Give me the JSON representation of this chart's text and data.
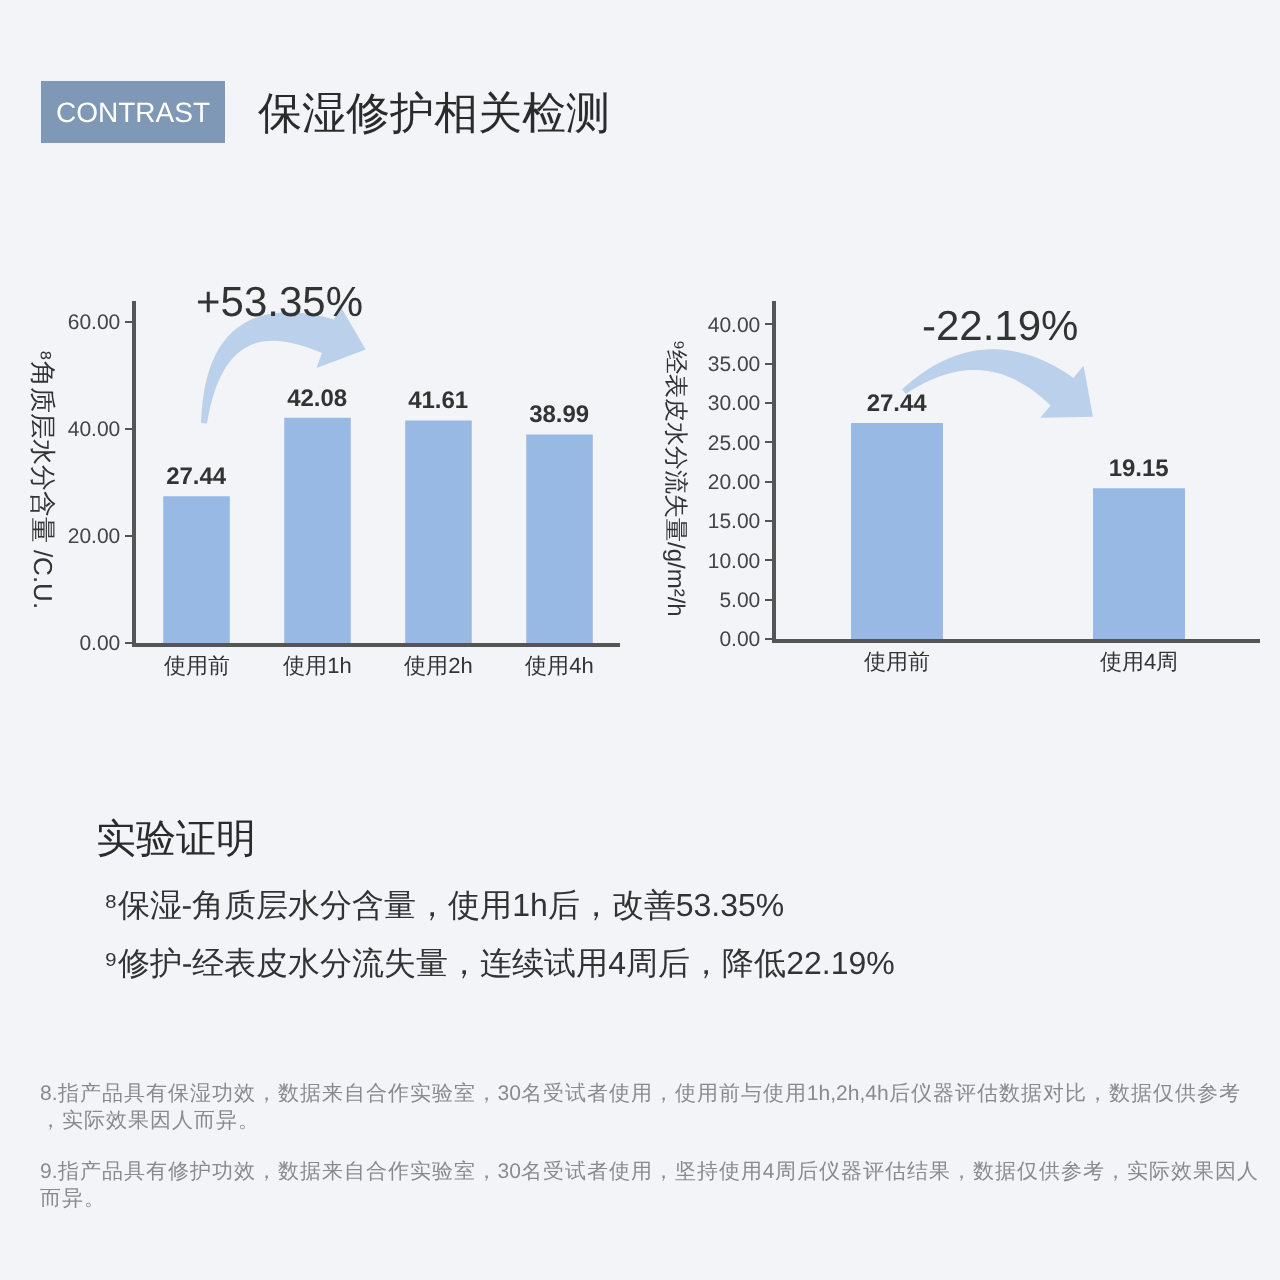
{
  "chart_data": [
    {
      "type": "other",
      "title": "保湿修护相关检测",
      "annotations": [
        "CONTRAST"
      ]
    },
    {
      "type": "bar",
      "categories": [
        "使用前",
        "使用1h",
        "使用2h",
        "使用4h"
      ],
      "values": [
        27.44,
        42.08,
        41.61,
        38.99
      ],
      "color": "#98b9e4",
      "ylabel": "⁸角质层水分含量 /C.U.",
      "ylim": [
        0,
        64
      ],
      "yticks": [
        {
          "value": 0,
          "label": "0.00"
        },
        {
          "value": 20,
          "label": "20.00"
        },
        {
          "value": 40,
          "label": "40.00"
        },
        {
          "value": 60,
          "label": "60.00"
        }
      ],
      "data_labels": true,
      "annotations": [
        "+53.35%"
      ]
    },
    {
      "type": "bar",
      "categories": [
        "使用前",
        "使用4周"
      ],
      "values": [
        27.44,
        19.15
      ],
      "color": "#98b9e4",
      "ylabel": "⁹经表皮水分流失量/g/m²/h",
      "ylim": [
        0,
        43
      ],
      "yticks": [
        {
          "value": 0,
          "label": "0.00"
        },
        {
          "value": 5,
          "label": "5.00"
        },
        {
          "value": 10,
          "label": "10.00"
        },
        {
          "value": 15,
          "label": "15.00"
        },
        {
          "value": 20,
          "label": "20.00"
        },
        {
          "value": 25,
          "label": "25.00"
        },
        {
          "value": 30,
          "label": "30.00"
        },
        {
          "value": 35,
          "label": "35.00"
        },
        {
          "value": 40,
          "label": "40.00"
        }
      ],
      "data_labels": true,
      "annotations": [
        "-22.19%"
      ]
    },
    {
      "type": "other",
      "title": "实验证明",
      "annotations": [
        "⁸保湿-角质层水分含量，使用1h后，改善53.35%",
        "⁹修护-经表皮水分流失量，连续试用4周后，降低22.19%"
      ]
    },
    {
      "type": "other",
      "annotations": [
        "8.指产品具有保湿功效，数据来自合作实验室，30名受试者使用，使用前与使用1h,2h,4h后仪器评估数据对比，数据仅供参考，实际效果因人而异。",
        "9.指产品具有修护功效，数据来自合作实验室，30名受试者使用，坚持使用4周后仪器评估结果，数据仅供参考，实际效果因人而异。"
      ]
    }
  ]
}
